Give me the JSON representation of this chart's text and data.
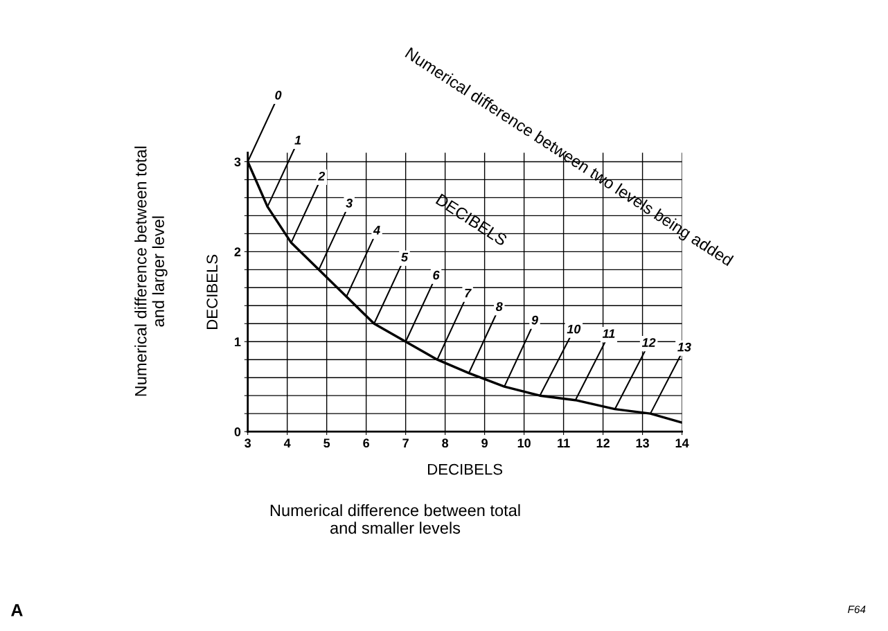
{
  "chart_data": {
    "type": "line",
    "xlabel": "DECIBELS",
    "ylabel": "DECIBELS",
    "x": [
      3.0,
      3.5,
      4.1,
      4.8,
      5.5,
      6.2,
      7.0,
      7.8,
      8.6,
      9.5,
      10.4,
      11.3,
      12.3,
      13.2,
      14.0
    ],
    "series": [
      {
        "color": "#000000",
        "values": [
          3.0,
          2.5,
          2.1,
          1.8,
          1.5,
          1.2,
          1.0,
          0.8,
          0.65,
          0.5,
          0.4,
          0.35,
          0.25,
          0.2,
          0.1
        ]
      }
    ],
    "xlim": [
      3,
      14
    ],
    "ylim": [
      0,
      3.1
    ],
    "xticks": [
      3,
      4,
      5,
      6,
      7,
      8,
      9,
      10,
      11,
      12,
      13,
      14
    ],
    "yticks": [
      0,
      {
        "value": 0.2,
        "label": null
      },
      {
        "value": 0.4,
        "label": null
      },
      {
        "value": 0.6,
        "label": null
      },
      {
        "value": 0.8,
        "label": null
      },
      1,
      {
        "value": 1.2,
        "label": null
      },
      {
        "value": 1.4,
        "label": null
      },
      {
        "value": 1.6,
        "label": null
      },
      {
        "value": 1.8,
        "label": null
      },
      2,
      {
        "value": 2.2,
        "label": null
      },
      {
        "value": 2.4,
        "label": null
      },
      {
        "value": 2.6,
        "label": null
      },
      {
        "value": 2.8,
        "label": null
      },
      3
    ],
    "grid": true,
    "marker": "none",
    "line_style": "solid",
    "annotations": [
      {
        "text": "0",
        "x": 3.0,
        "y": 3.0
      },
      {
        "text": "1",
        "x": 3.5,
        "y": 2.5
      },
      {
        "text": "2",
        "x": 4.1,
        "y": 2.1
      },
      {
        "text": "3",
        "x": 4.8,
        "y": 1.8
      },
      {
        "text": "4",
        "x": 5.5,
        "y": 1.5
      },
      {
        "text": "5",
        "x": 6.2,
        "y": 1.2
      },
      {
        "text": "6",
        "x": 7.0,
        "y": 1.0
      },
      {
        "text": "7",
        "x": 7.8,
        "y": 0.8
      },
      {
        "text": "8",
        "x": 8.6,
        "y": 0.65
      },
      {
        "text": "9",
        "x": 9.5,
        "y": 0.5
      },
      {
        "text": "10",
        "x": 10.4,
        "y": 0.4
      },
      {
        "text": "11",
        "x": 11.3,
        "y": 0.35
      },
      {
        "text": "12",
        "x": 12.3,
        "y": 0.25
      },
      {
        "text": "13",
        "x": 13.2,
        "y": 0.2
      },
      "Numerical difference between two levels being added",
      "DECIBELS",
      "Numerical difference between total\nand larger level",
      "Numerical difference between total\nand smaller levels",
      "A",
      "F64"
    ]
  }
}
